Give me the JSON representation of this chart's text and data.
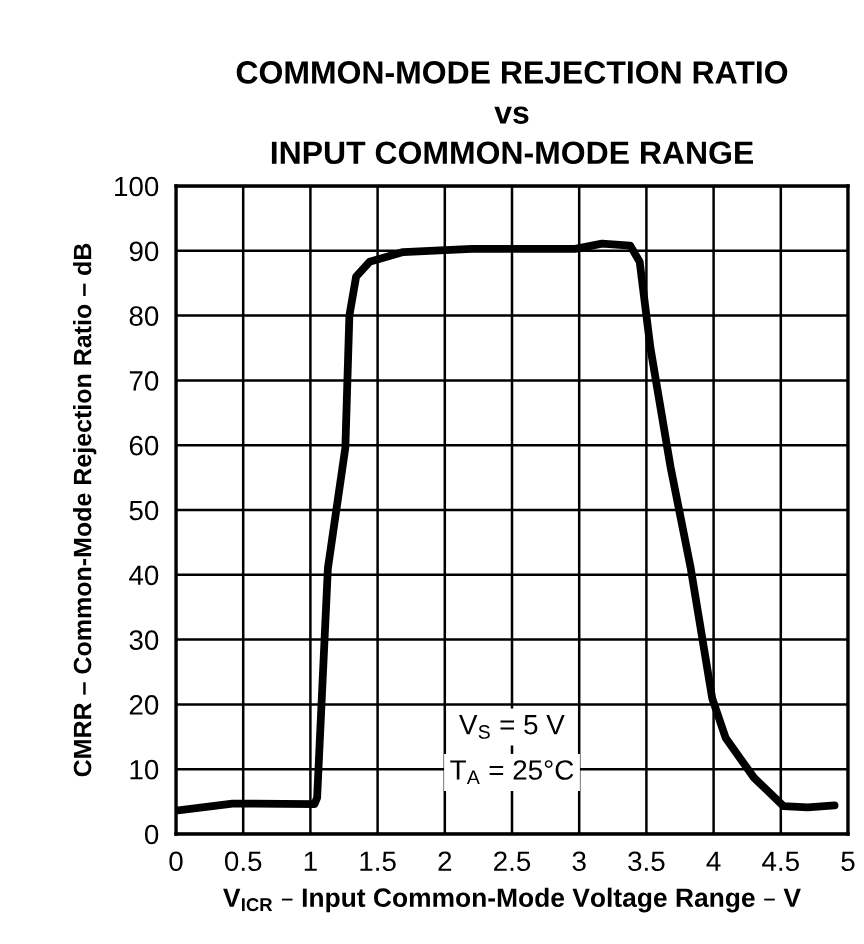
{
  "chart_data": {
    "type": "line",
    "title": "COMMON-MODE REJECTION RATIO\nvs\nINPUT COMMON-MODE RANGE",
    "xlabel": "V$_{ICR}$ – Input Common-Mode Voltage Range – V",
    "ylabel": "CMRR – Common-Mode Rejection Ratio – dB",
    "x": [
      0,
      0.42,
      1.03,
      1.05,
      1.13,
      1.26,
      1.29,
      1.34,
      1.44,
      1.69,
      2.2,
      2.97,
      3.17,
      3.38,
      3.45,
      3.53,
      3.68,
      3.83,
      3.99,
      4.09,
      4.3,
      4.52,
      4.7,
      4.9
    ],
    "series": [
      {
        "color": "#000000",
        "values": [
          3.6,
          4.7,
          4.6,
          5.6,
          41,
          59.6,
          80,
          86,
          88.3,
          89.8,
          90.3,
          90.3,
          91.1,
          90.8,
          88.3,
          75,
          56.6,
          41,
          20.9,
          14.8,
          8.7,
          4.3,
          4.1,
          4.4
        ]
      }
    ],
    "xlim": [
      0,
      5
    ],
    "xticks": [
      0,
      0.5,
      1,
      1.5,
      2,
      2.5,
      3,
      3.5,
      4,
      4.5,
      5
    ],
    "ylim": [
      0,
      100
    ],
    "yticks": [
      0,
      10,
      20,
      30,
      40,
      50,
      60,
      70,
      80,
      90,
      100
    ],
    "grid": true,
    "legend": false,
    "marker": "none",
    "line_style": "solid",
    "annotations": [
      "V$_{S}$ = 5 V",
      "T$_{A}$ = 25°C"
    ]
  }
}
